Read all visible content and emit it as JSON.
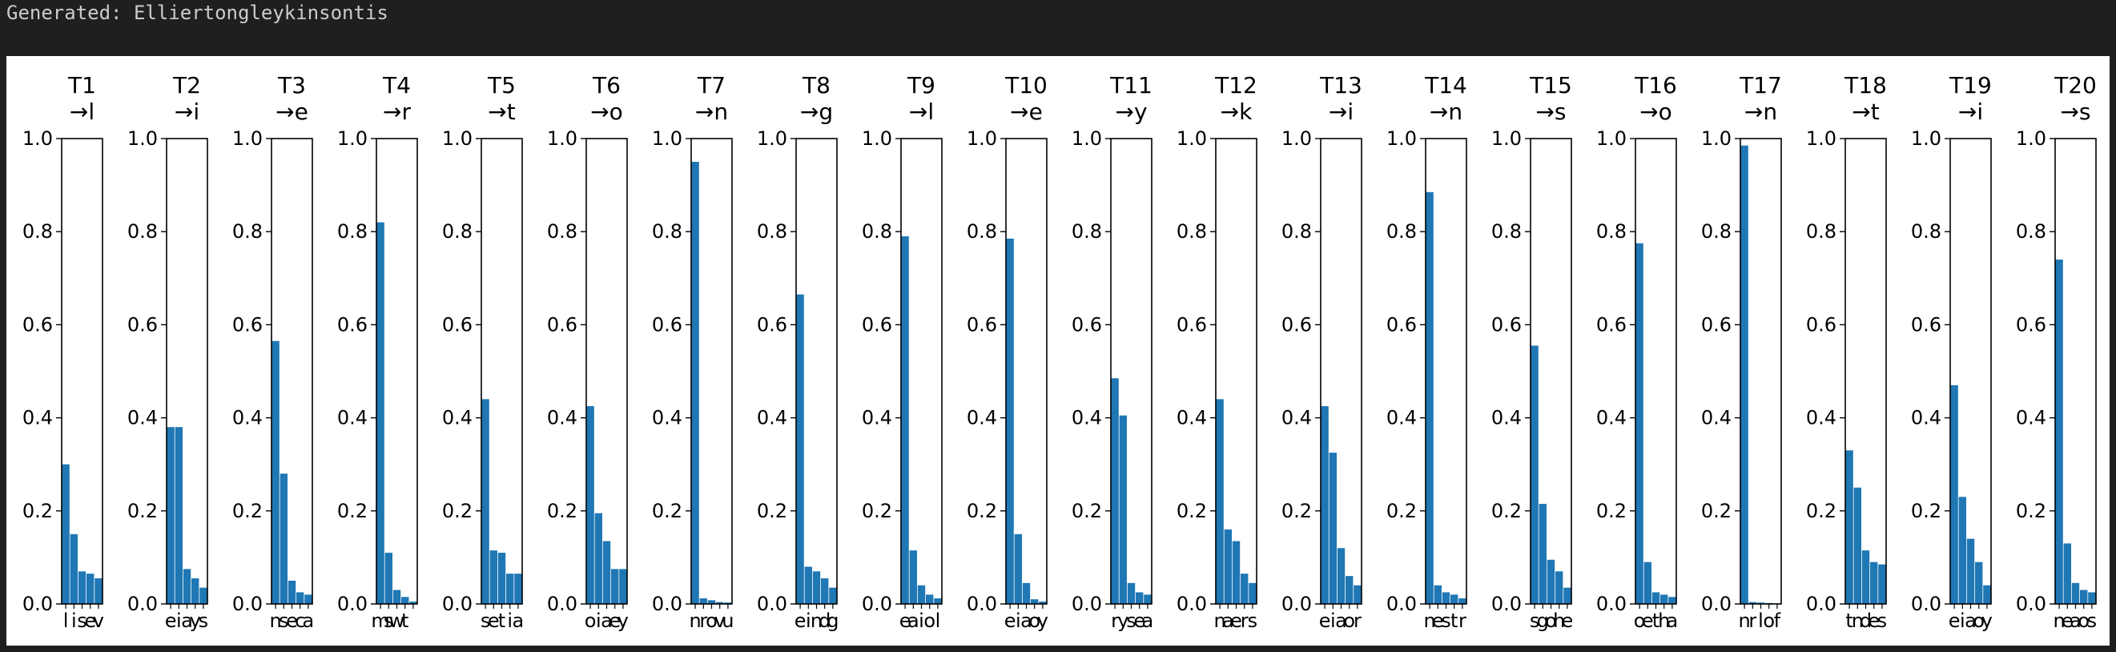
{
  "output": {
    "generated_line": "Generated: Elliertongleykinsontis"
  },
  "chart_data": {
    "type": "bar",
    "ylim": [
      0,
      1.0
    ],
    "yticks": [
      "0.0",
      "0.2",
      "0.4",
      "0.6",
      "0.8",
      "1.0"
    ],
    "bar_color": "#1f77b4",
    "grid": false,
    "panels": [
      {
        "title": "T1\n→l",
        "categories": [
          "l",
          "i",
          "s",
          "e",
          "v"
        ],
        "values": [
          0.3,
          0.15,
          0.07,
          0.065,
          0.055
        ]
      },
      {
        "title": "T2\n→i",
        "categories": [
          "e",
          "i",
          "a",
          "y",
          "s"
        ],
        "values": [
          0.38,
          0.38,
          0.075,
          0.055,
          0.035
        ]
      },
      {
        "title": "T3\n→e",
        "categories": [
          "n",
          "s",
          "e",
          "c",
          "a"
        ],
        "values": [
          0.565,
          0.28,
          0.05,
          0.025,
          0.02
        ]
      },
      {
        "title": "T4\n→r",
        "categories": [
          "m",
          "s",
          "w",
          "t",
          ""
        ],
        "values": [
          0.82,
          0.11,
          0.03,
          0.015,
          0.005
        ]
      },
      {
        "title": "T5\n→t",
        "categories": [
          "s",
          "e",
          "t",
          "i",
          "a"
        ],
        "values": [
          0.44,
          0.115,
          0.11,
          0.065,
          0.065
        ]
      },
      {
        "title": "T6\n→o",
        "categories": [
          "o",
          "i",
          "a",
          "e",
          "y"
        ],
        "values": [
          0.425,
          0.195,
          0.135,
          0.075,
          0.075
        ]
      },
      {
        "title": "T7\n→n",
        "categories": [
          "n",
          "r",
          "o",
          "v",
          "u"
        ],
        "values": [
          0.95,
          0.012,
          0.008,
          0.004,
          0.003
        ]
      },
      {
        "title": "T8\n→g",
        "categories": [
          "e",
          "i",
          "n",
          "d",
          "g"
        ],
        "values": [
          0.665,
          0.08,
          0.07,
          0.055,
          0.035
        ]
      },
      {
        "title": "T9\n→l",
        "categories": [
          "e",
          "a",
          "i",
          "o",
          "l"
        ],
        "values": [
          0.79,
          0.115,
          0.04,
          0.02,
          0.012
        ]
      },
      {
        "title": "T10\n→e",
        "categories": [
          "e",
          "i",
          "a",
          "o",
          "y"
        ],
        "values": [
          0.785,
          0.15,
          0.045,
          0.01,
          0.005
        ]
      },
      {
        "title": "T11\n→y",
        "categories": [
          "r",
          "y",
          "s",
          "e",
          "a"
        ],
        "values": [
          0.485,
          0.405,
          0.045,
          0.025,
          0.02
        ]
      },
      {
        "title": "T12\n→k",
        "categories": [
          "n",
          "a",
          "e",
          "r",
          "s"
        ],
        "values": [
          0.44,
          0.16,
          0.135,
          0.065,
          0.045
        ]
      },
      {
        "title": "T13\n→i",
        "categories": [
          "e",
          "i",
          "a",
          "o",
          "r"
        ],
        "values": [
          0.425,
          0.325,
          0.12,
          0.06,
          0.04
        ]
      },
      {
        "title": "T14\n→n",
        "categories": [
          "n",
          "e",
          "s",
          "t",
          "r"
        ],
        "values": [
          0.885,
          0.04,
          0.025,
          0.02,
          0.012
        ]
      },
      {
        "title": "T15\n→s",
        "categories": [
          "s",
          "g",
          "o",
          "h",
          "e"
        ],
        "values": [
          0.555,
          0.215,
          0.095,
          0.07,
          0.035
        ]
      },
      {
        "title": "T16\n→o",
        "categories": [
          "o",
          "e",
          "t",
          "h",
          "a"
        ],
        "values": [
          0.775,
          0.09,
          0.025,
          0.02,
          0.015
        ]
      },
      {
        "title": "T17\n→n",
        "categories": [
          "n",
          "r",
          "l",
          "o",
          "f"
        ],
        "values": [
          0.985,
          0.004,
          0.003,
          0.002,
          0.001
        ]
      },
      {
        "title": "T18\n→t",
        "categories": [
          "t",
          "n",
          "d",
          "e",
          "s"
        ],
        "values": [
          0.33,
          0.25,
          0.115,
          0.09,
          0.085
        ]
      },
      {
        "title": "T19\n→i",
        "categories": [
          "e",
          "i",
          "a",
          "o",
          "y"
        ],
        "values": [
          0.47,
          0.23,
          0.14,
          0.09,
          0.04
        ]
      },
      {
        "title": "T20\n→s",
        "categories": [
          "n",
          "e",
          "a",
          "o",
          "s"
        ],
        "values": [
          0.74,
          0.13,
          0.045,
          0.03,
          0.025
        ]
      }
    ]
  }
}
